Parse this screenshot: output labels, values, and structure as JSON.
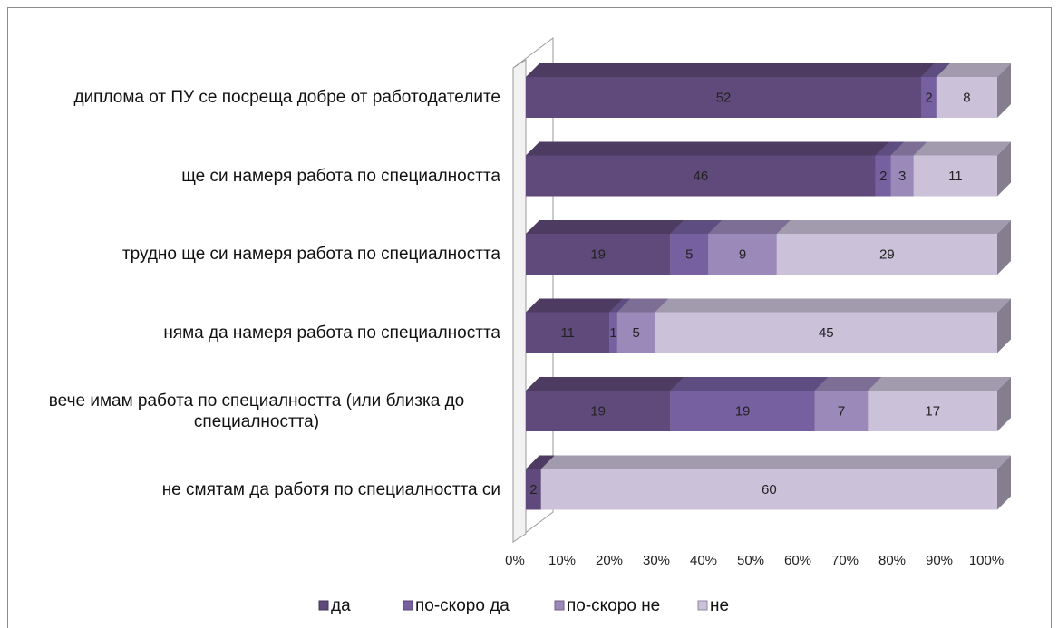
{
  "chart_data": {
    "type": "bar",
    "orientation": "horizontal",
    "stacked": "percent",
    "categories": [
      "диплома от ПУ се посреща добре от работодателите",
      "ще си намеря работа по специалността",
      "трудно ще си намеря работа по специалността",
      "няма да намеря работа по специалността",
      "вече имам работа по специалността (или близка до специалността)",
      "не смятам да работя по специалността си"
    ],
    "series": [
      {
        "name": "да",
        "color": "#604a7b",
        "values": [
          52,
          46,
          19,
          11,
          19,
          2
        ]
      },
      {
        "name": "по-скоро да",
        "color": "#7660a0",
        "values": [
          2,
          2,
          5,
          1,
          19,
          null
        ]
      },
      {
        "name": "по-скоро не",
        "color": "#9b89b9",
        "values": [
          null,
          3,
          9,
          5,
          7,
          null
        ]
      },
      {
        "name": "не",
        "color": "#cbc2da",
        "values": [
          8,
          11,
          29,
          45,
          17,
          60
        ]
      }
    ],
    "xlim": [
      0,
      100
    ],
    "xticks": [
      {
        "value": 0,
        "label": "0%"
      },
      {
        "value": 10,
        "label": "10%"
      },
      {
        "value": 20,
        "label": "20%"
      },
      {
        "value": 30,
        "label": "30%"
      },
      {
        "value": 40,
        "label": "40%"
      },
      {
        "value": 50,
        "label": "50%"
      },
      {
        "value": 60,
        "label": "60%"
      },
      {
        "value": 70,
        "label": "70%"
      },
      {
        "value": 80,
        "label": "80%"
      },
      {
        "value": 90,
        "label": "90%"
      },
      {
        "value": 100,
        "label": "100%"
      }
    ],
    "legend": "bottom"
  }
}
